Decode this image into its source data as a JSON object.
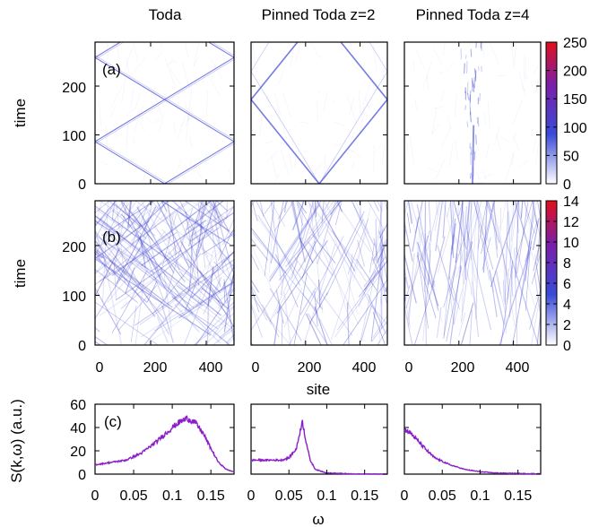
{
  "column_titles": [
    "Toda",
    "Pinned Toda z=2",
    "Pinned Toda z=4"
  ],
  "row_a": {
    "panel_label": "(a)",
    "ylabel": "time",
    "yticks": [
      "0",
      "100",
      "200"
    ],
    "colorbar_ticks": [
      "0",
      "50",
      "100",
      "150",
      "200",
      "250"
    ]
  },
  "row_b": {
    "panel_label": "(b)",
    "ylabel": "time",
    "yticks": [
      "0",
      "100",
      "200"
    ],
    "colorbar_ticks": [
      "0",
      "2",
      "4",
      "6",
      "8",
      "10",
      "12",
      "14"
    ],
    "xticks": [
      "0",
      "200",
      "400"
    ],
    "xlabel": "site"
  },
  "row_c": {
    "panel_label": "(c)",
    "ylabel": "S(k,ω) (a.u.)",
    "yticks": [
      "0",
      "20",
      "40",
      "60"
    ],
    "xticks": [
      "0",
      "0.05",
      "0.1",
      "0.15"
    ],
    "xlabel": "ω"
  },
  "colors": {
    "line": "#8a1fc7",
    "rays": "#4a50d8",
    "colormap": [
      "#ffffff",
      "#3a4bd8",
      "#7a1fa8",
      "#e0101c"
    ]
  },
  "chart_data": [
    {
      "type": "heatmap",
      "panel": "(a) Toda",
      "xlim": [
        0,
        500
      ],
      "ylim": [
        0,
        290
      ],
      "clim": [
        0,
        250
      ],
      "xlabel": "",
      "ylabel": "time",
      "description_values": {
        "source_site": 250,
        "front_speed_sites_per_time": 2.9
      }
    },
    {
      "type": "heatmap",
      "panel": "(a) Pinned Toda z=2",
      "xlim": [
        0,
        500
      ],
      "ylim": [
        0,
        290
      ],
      "clim": [
        0,
        250
      ],
      "description_values": {
        "source_site": 250,
        "front_speed_sites_per_time": 1.45
      }
    },
    {
      "type": "heatmap",
      "panel": "(a) Pinned Toda z=4",
      "xlim": [
        0,
        500
      ],
      "ylim": [
        0,
        290
      ],
      "clim": [
        0,
        250
      ],
      "description_values": {
        "source_site": 250,
        "front_speed_sites_per_time": 0.05
      }
    },
    {
      "type": "heatmap",
      "panel": "(b) Toda",
      "xlim": [
        0,
        500
      ],
      "ylim": [
        0,
        290
      ],
      "clim": [
        0,
        14
      ]
    },
    {
      "type": "heatmap",
      "panel": "(b) Pinned Toda z=2",
      "xlim": [
        0,
        500
      ],
      "ylim": [
        0,
        290
      ],
      "clim": [
        0,
        14
      ]
    },
    {
      "type": "heatmap",
      "panel": "(b) Pinned Toda z=4",
      "xlim": [
        0,
        500
      ],
      "ylim": [
        0,
        290
      ],
      "clim": [
        0,
        14
      ]
    },
    {
      "type": "line",
      "panel": "(c) Toda",
      "xlim": [
        0,
        0.18
      ],
      "ylim": [
        0,
        60
      ],
      "x": [
        0,
        0.02,
        0.04,
        0.06,
        0.08,
        0.1,
        0.11,
        0.12,
        0.13,
        0.14,
        0.15,
        0.16,
        0.17,
        0.18
      ],
      "y": [
        8,
        10,
        12,
        18,
        28,
        40,
        45,
        48,
        44,
        35,
        22,
        10,
        4,
        2
      ]
    },
    {
      "type": "line",
      "panel": "(c) Pinned Toda z=2",
      "xlim": [
        0,
        0.18
      ],
      "ylim": [
        0,
        60
      ],
      "x": [
        0,
        0.02,
        0.04,
        0.05,
        0.06,
        0.065,
        0.068,
        0.072,
        0.078,
        0.085,
        0.1,
        0.14,
        0.18
      ],
      "y": [
        12,
        12,
        12,
        14,
        22,
        38,
        45,
        30,
        12,
        4,
        1,
        0,
        0
      ]
    },
    {
      "type": "line",
      "panel": "(c) Pinned Toda z=4",
      "xlim": [
        0,
        0.18
      ],
      "ylim": [
        0,
        60
      ],
      "x": [
        0,
        0.005,
        0.01,
        0.02,
        0.03,
        0.04,
        0.06,
        0.08,
        0.1,
        0.12,
        0.15,
        0.18
      ],
      "y": [
        38,
        37,
        34,
        27,
        20,
        14,
        8,
        4,
        2,
        1,
        0.5,
        0.3
      ]
    }
  ]
}
